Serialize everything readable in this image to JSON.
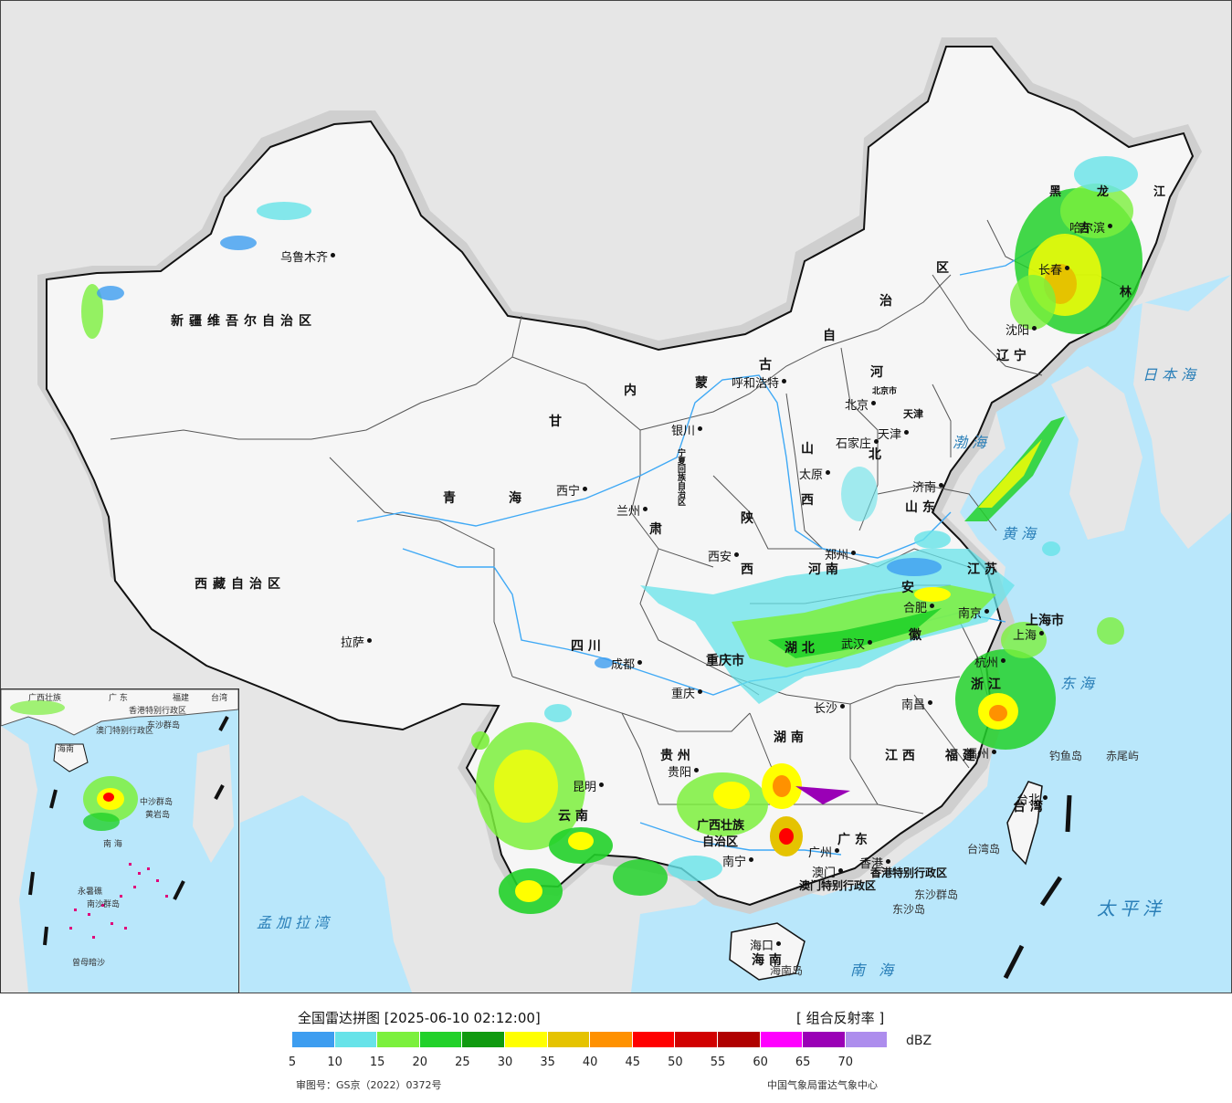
{
  "colors": {
    "sea": "#b9e7fb",
    "land_outside": "#e6e6e6",
    "china_land": "#f4f4f4",
    "halo": "#d0d0d0",
    "river": "#3fa9f5",
    "border": "#111111"
  },
  "map": {
    "provinces": [
      {
        "id": "xinjiang",
        "text": "新疆维吾尔自治区"
      },
      {
        "id": "xizang",
        "text": "西藏自治区"
      },
      {
        "id": "qinghai-1",
        "text": "青"
      },
      {
        "id": "qinghai-2",
        "text": "海"
      },
      {
        "id": "gansu",
        "text": "甘"
      },
      {
        "id": "gansu-2",
        "text": "肃"
      },
      {
        "id": "nm-1",
        "text": "内"
      },
      {
        "id": "nm-2",
        "text": "蒙"
      },
      {
        "id": "nm-3",
        "text": "古"
      },
      {
        "id": "nm-4",
        "text": "自"
      },
      {
        "id": "nm-5",
        "text": "治"
      },
      {
        "id": "nm-6",
        "text": "区"
      },
      {
        "id": "hlj-1",
        "text": "黑"
      },
      {
        "id": "hlj-2",
        "text": "龙"
      },
      {
        "id": "hlj-3",
        "text": "江"
      },
      {
        "id": "jilin-1",
        "text": "吉"
      },
      {
        "id": "jilin-2",
        "text": "林"
      },
      {
        "id": "liaoning",
        "text": "辽 宁"
      },
      {
        "id": "hebei-1",
        "text": "河"
      },
      {
        "id": "hebei-2",
        "text": "北"
      },
      {
        "id": "shanxi-1",
        "text": "山"
      },
      {
        "id": "shanxi-2",
        "text": "西"
      },
      {
        "id": "shaanxi-1",
        "text": "陕"
      },
      {
        "id": "shaanxi-2",
        "text": "西"
      },
      {
        "id": "henan",
        "text": "河 南"
      },
      {
        "id": "shandong",
        "text": "山 东"
      },
      {
        "id": "jiangsu",
        "text": "江 苏"
      },
      {
        "id": "anhui-1",
        "text": "安"
      },
      {
        "id": "anhui-2",
        "text": "徽"
      },
      {
        "id": "hubei",
        "text": "湖 北"
      },
      {
        "id": "sichuan",
        "text": "四    川"
      },
      {
        "id": "chongqing",
        "text": "重庆市"
      },
      {
        "id": "guizhou",
        "text": "贵 州"
      },
      {
        "id": "yunnan",
        "text": "云 南"
      },
      {
        "id": "hunan",
        "text": "湖 南"
      },
      {
        "id": "jiangxi",
        "text": "江 西"
      },
      {
        "id": "zhejiang",
        "text": "浙 江"
      },
      {
        "id": "fujian",
        "text": "福 建"
      },
      {
        "id": "guangdong",
        "text": "广 东"
      },
      {
        "id": "guangxi-1",
        "text": "广西壮族"
      },
      {
        "id": "guangxi-2",
        "text": "自治区"
      },
      {
        "id": "hainan",
        "text": "海 南"
      },
      {
        "id": "shanghai",
        "text": "上海市"
      },
      {
        "id": "taiwan",
        "text": "台 湾"
      },
      {
        "id": "ningxia",
        "text": "宁夏回族自治区"
      },
      {
        "id": "beijing-city",
        "text": "北京市"
      },
      {
        "id": "tianjin",
        "text": "天津"
      },
      {
        "id": "hk",
        "text": "香港特别行政区"
      },
      {
        "id": "macau",
        "text": "澳门特别行政区"
      }
    ],
    "cities": [
      {
        "id": "urumqi",
        "text": "乌鲁木齐"
      },
      {
        "id": "lhasa",
        "text": "拉萨"
      },
      {
        "id": "xining",
        "text": "西宁"
      },
      {
        "id": "lanzhou",
        "text": "兰州"
      },
      {
        "id": "yinchuan",
        "text": "银川"
      },
      {
        "id": "hohhot",
        "text": "呼和浩特"
      },
      {
        "id": "beijing",
        "text": "北京"
      },
      {
        "id": "tianjin-c",
        "text": "天津"
      },
      {
        "id": "shijiazhuang",
        "text": "石家庄"
      },
      {
        "id": "taiyuan",
        "text": "太原"
      },
      {
        "id": "jinan",
        "text": "济南"
      },
      {
        "id": "shenyang",
        "text": "沈阳"
      },
      {
        "id": "changchun",
        "text": "长春"
      },
      {
        "id": "harbin",
        "text": "哈尔滨"
      },
      {
        "id": "xian",
        "text": "西安"
      },
      {
        "id": "zhengzhou",
        "text": "郑州"
      },
      {
        "id": "hefei",
        "text": "合肥"
      },
      {
        "id": "nanjing",
        "text": "南京"
      },
      {
        "id": "shanghai-c",
        "text": "上海"
      },
      {
        "id": "hangzhou",
        "text": "杭州"
      },
      {
        "id": "wuhan",
        "text": "武汉"
      },
      {
        "id": "chengdu",
        "text": "成都"
      },
      {
        "id": "chongqing-c",
        "text": "重庆"
      },
      {
        "id": "guiyang",
        "text": "贵阳"
      },
      {
        "id": "kunming",
        "text": "昆明"
      },
      {
        "id": "changsha",
        "text": "长沙"
      },
      {
        "id": "nanchang",
        "text": "南昌"
      },
      {
        "id": "fuzhou",
        "text": "福州"
      },
      {
        "id": "taibei",
        "text": "台北"
      },
      {
        "id": "nanning",
        "text": "南宁"
      },
      {
        "id": "guangzhou",
        "text": "广州"
      },
      {
        "id": "aomen",
        "text": "澳门"
      },
      {
        "id": "xianggang",
        "text": "香港"
      },
      {
        "id": "haikou",
        "text": "海口"
      }
    ],
    "seas": [
      {
        "id": "japan-sea",
        "text": "日本海"
      },
      {
        "id": "bohai",
        "text": "渤海"
      },
      {
        "id": "yellow-sea",
        "text": "黄海"
      },
      {
        "id": "east-sea",
        "text": "东海"
      },
      {
        "id": "south-sea",
        "text": "南  海"
      },
      {
        "id": "pacific",
        "text": "太平洋"
      },
      {
        "id": "bengal",
        "text": "孟加拉湾"
      }
    ],
    "islands": [
      {
        "id": "diaoyu",
        "text": "钓鱼岛"
      },
      {
        "id": "chiwei",
        "text": "赤尾屿"
      },
      {
        "id": "taiwan-isl",
        "text": "台湾岛"
      },
      {
        "id": "dongsha-qundao",
        "text": "东沙群岛"
      },
      {
        "id": "dongsha-dao",
        "text": "东沙岛"
      },
      {
        "id": "hainan-isl",
        "text": "海南岛"
      }
    ],
    "inset": {
      "labels": [
        {
          "id": "i-guangxi",
          "text": "广西壮族"
        },
        {
          "id": "i-guangdong",
          "text": "广  东"
        },
        {
          "id": "i-fujian",
          "text": "福建"
        },
        {
          "id": "i-taiwan",
          "text": "台湾"
        },
        {
          "id": "i-hk",
          "text": "香港特别行政区"
        },
        {
          "id": "i-macau",
          "text": "澳门特别行政区"
        },
        {
          "id": "i-dongsha",
          "text": "东沙群岛"
        },
        {
          "id": "i-hainan",
          "text": "海南"
        },
        {
          "id": "i-zhongsha",
          "text": "中沙群岛"
        },
        {
          "id": "i-huangyan",
          "text": "黄岩岛"
        },
        {
          "id": "i-nanhai",
          "text": "南    海"
        },
        {
          "id": "i-yongshu",
          "text": "永暑礁"
        },
        {
          "id": "i-nansha",
          "text": "南沙群岛"
        },
        {
          "id": "i-zengmu",
          "text": "曾母暗沙"
        }
      ]
    }
  },
  "legend": {
    "title": "全国雷达拼图 [2025-06-10 02:12:00]",
    "product": "[ 组合反射率 ]",
    "unit": "dBZ",
    "colors": [
      "#3d9df0",
      "#67e3e9",
      "#7cf03d",
      "#22d12a",
      "#109a10",
      "#ffff00",
      "#e5c300",
      "#ff9100",
      "#ff0000",
      "#d10000",
      "#b00000",
      "#ff00ff",
      "#9a00b6",
      "#ad8ded"
    ],
    "ticks": [
      "5",
      "10",
      "15",
      "20",
      "25",
      "30",
      "35",
      "40",
      "45",
      "50",
      "55",
      "60",
      "65",
      "70"
    ],
    "approval": "审图号：GS京（2022）0372号",
    "credit": "中国气象局雷达气象中心"
  }
}
